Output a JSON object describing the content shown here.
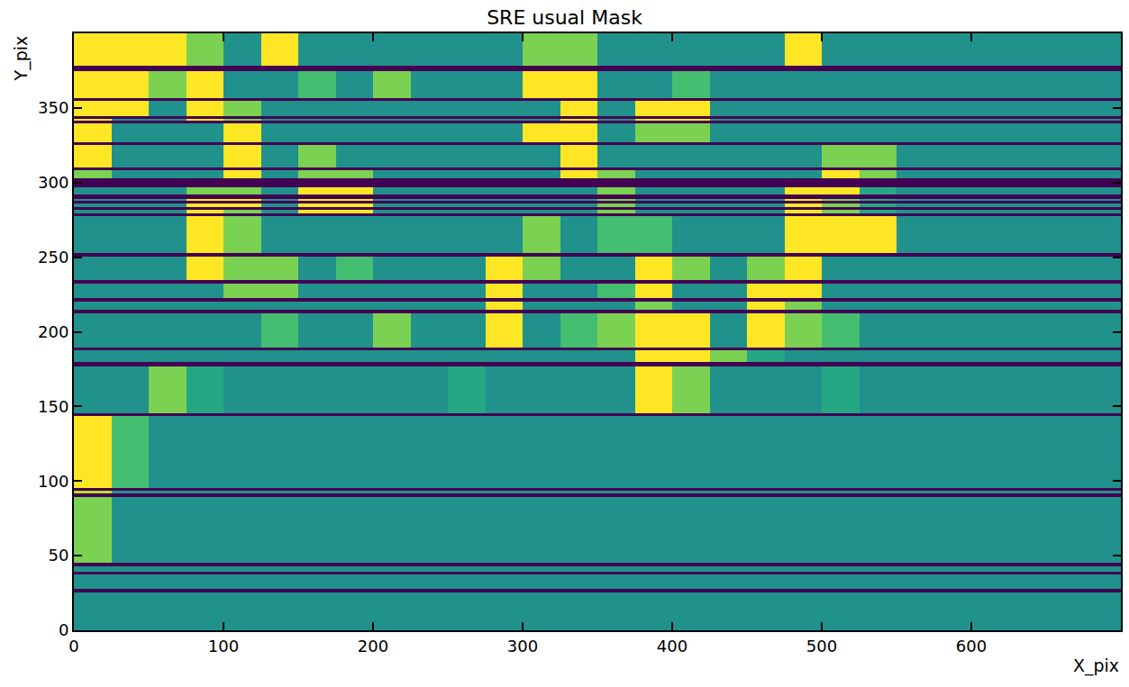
{
  "chart_data": {
    "type": "heatmap",
    "title": "SRE usual Mask",
    "x_label": "X_pix",
    "y_label": "Y_pix",
    "color": "Viridis",
    "xlim": [
      0,
      700
    ],
    "ylim": [
      0,
      400
    ],
    "xticks": [
      0,
      100,
      200,
      300,
      400,
      500,
      600
    ],
    "yticks": [
      0,
      50,
      100,
      150,
      200,
      250,
      300,
      350
    ],
    "grid": false,
    "zlim": [
      0,
      1
    ],
    "x": [
      0,
      25,
      50,
      75,
      100,
      125,
      150,
      175,
      200,
      225,
      250,
      275,
      300,
      325,
      350,
      375,
      400,
      425,
      450,
      475,
      500,
      525,
      550,
      575,
      600,
      625,
      650,
      675,
      700
    ],
    "y": [
      0,
      25.5,
      27.5,
      37.5,
      39.5,
      43,
      45,
      89.5,
      91.5,
      93.5,
      95.5,
      143.5,
      145.5,
      177,
      180,
      187.5,
      189.5,
      212.5,
      214.5,
      220.5,
      222.5,
      232.5,
      234.5,
      250.5,
      252.5,
      277.5,
      279.5,
      281.5,
      283.5,
      286,
      288,
      289,
      292,
      297,
      303,
      308,
      310,
      325,
      327,
      339.5,
      341.5,
      342.5,
      344.5,
      354.5,
      356.5,
      374.5,
      378.5,
      400
    ],
    "z": [
      [
        0.5,
        0.5,
        0.5,
        0.5,
        0.5,
        0.5,
        0.5,
        0.5,
        0.5,
        0.5,
        0.5,
        0.5,
        0.5,
        0.5,
        0.5,
        0.5,
        0.5,
        0.5,
        0.5,
        0.5,
        0.5,
        0.5,
        0.5,
        0.5,
        0.5,
        0.5,
        0.5,
        0.5
      ],
      [
        0,
        0,
        0,
        0,
        0,
        0,
        0,
        0,
        0,
        0,
        0,
        0,
        0,
        0,
        0,
        0,
        0,
        0,
        0,
        0,
        0,
        0,
        0,
        0,
        0,
        0,
        0,
        0
      ],
      [
        0.5,
        0.5,
        0.5,
        0.5,
        0.5,
        0.5,
        0.5,
        0.5,
        0.5,
        0.5,
        0.5,
        0.5,
        0.5,
        0.5,
        0.5,
        0.5,
        0.5,
        0.5,
        0.5,
        0.5,
        0.5,
        0.5,
        0.5,
        0.5,
        0.5,
        0.5,
        0.5,
        0.5
      ],
      [
        0,
        0,
        0,
        0,
        0,
        0,
        0,
        0,
        0,
        0,
        0,
        0,
        0,
        0,
        0,
        0,
        0,
        0,
        0,
        0,
        0,
        0,
        0,
        0,
        0,
        0,
        0,
        0
      ],
      [
        0.5,
        0.5,
        0.5,
        0.5,
        0.5,
        0.5,
        0.5,
        0.5,
        0.5,
        0.5,
        0.5,
        0.5,
        0.5,
        0.5,
        0.5,
        0.5,
        0.5,
        0.5,
        0.5,
        0.5,
        0.5,
        0.5,
        0.5,
        0.5,
        0.5,
        0.5,
        0.5,
        0.5
      ],
      [
        0,
        0,
        0,
        0,
        0,
        0,
        0,
        0,
        0,
        0,
        0,
        0,
        0,
        0,
        0,
        0,
        0,
        0,
        0,
        0,
        0,
        0,
        0,
        0,
        0,
        0,
        0,
        0
      ],
      [
        0.8,
        0.5,
        0.5,
        0.5,
        0.5,
        0.5,
        0.5,
        0.5,
        0.5,
        0.5,
        0.5,
        0.5,
        0.5,
        0.5,
        0.5,
        0.5,
        0.5,
        0.5,
        0.5,
        0.5,
        0.5,
        0.5,
        0.5,
        0.5,
        0.5,
        0.5,
        0.5,
        0.5
      ],
      [
        0,
        0,
        0,
        0,
        0,
        0,
        0,
        0,
        0,
        0,
        0,
        0,
        0,
        0,
        0,
        0,
        0,
        0,
        0,
        0,
        0,
        0,
        0,
        0,
        0,
        0,
        0,
        0
      ],
      [
        0.9,
        0.5,
        0.5,
        0.5,
        0.5,
        0.5,
        0.5,
        0.5,
        0.5,
        0.5,
        0.5,
        0.5,
        0.5,
        0.5,
        0.5,
        0.5,
        0.5,
        0.5,
        0.5,
        0.5,
        0.5,
        0.5,
        0.5,
        0.5,
        0.5,
        0.5,
        0.5,
        0.5
      ],
      [
        0,
        0,
        0,
        0,
        0,
        0,
        0,
        0,
        0,
        0,
        0,
        0,
        0,
        0,
        0,
        0,
        0,
        0,
        0,
        0,
        0,
        0,
        0,
        0,
        0,
        0,
        0,
        0
      ],
      [
        1,
        0.7,
        0.5,
        0.5,
        0.5,
        0.5,
        0.5,
        0.5,
        0.5,
        0.5,
        0.5,
        0.5,
        0.5,
        0.5,
        0.5,
        0.5,
        0.5,
        0.5,
        0.5,
        0.5,
        0.5,
        0.5,
        0.5,
        0.5,
        0.5,
        0.5,
        0.5,
        0.5
      ],
      [
        0,
        0,
        0,
        0,
        0,
        0,
        0,
        0,
        0,
        0,
        0,
        0,
        0,
        0,
        0,
        0,
        0,
        0,
        0,
        0,
        0,
        0,
        0,
        0,
        0,
        0,
        0,
        0
      ],
      [
        0.5,
        0.5,
        0.8,
        0.6,
        0.5,
        0.5,
        0.5,
        0.5,
        0.5,
        0.5,
        0.6,
        0.5,
        0.5,
        0.5,
        0.5,
        1,
        0.8,
        0.5,
        0.5,
        0.5,
        0.6,
        0.5,
        0.5,
        0.5,
        0.5,
        0.5,
        0.5,
        0.5
      ],
      [
        0,
        0,
        0,
        0,
        0,
        0,
        0,
        0,
        0,
        0,
        0,
        0,
        0,
        0,
        0,
        0,
        0,
        0,
        0,
        0,
        0,
        0,
        0,
        0,
        0,
        0,
        0,
        0
      ],
      [
        0.5,
        0.5,
        0.5,
        0.5,
        0.5,
        0.5,
        0.5,
        0.5,
        0.5,
        0.5,
        0.5,
        0.5,
        0.5,
        0.5,
        0.5,
        1,
        1,
        0.8,
        0.6,
        0.5,
        0.5,
        0.5,
        0.5,
        0.5,
        0.5,
        0.5,
        0.5,
        0.5
      ],
      [
        0,
        0,
        0,
        0,
        0,
        0,
        0,
        0,
        0,
        0,
        0,
        0,
        0,
        0,
        0,
        0,
        0,
        0,
        0,
        0,
        0,
        0,
        0,
        0,
        0,
        0,
        0,
        0
      ],
      [
        0.5,
        0.5,
        0.5,
        0.5,
        0.5,
        0.7,
        0.5,
        0.5,
        0.8,
        0.5,
        0.5,
        1,
        0.5,
        0.7,
        0.8,
        1,
        1,
        0.5,
        1,
        0.8,
        0.7,
        0.5,
        0.5,
        0.5,
        0.5,
        0.5,
        0.5,
        0.5
      ],
      [
        0,
        0,
        0,
        0,
        0,
        0,
        0,
        0,
        0,
        0,
        0,
        0,
        0,
        0,
        0,
        0,
        0,
        0,
        0,
        0,
        0,
        0,
        0,
        0,
        0,
        0,
        0,
        0
      ],
      [
        0.5,
        0.5,
        0.5,
        0.5,
        0.5,
        0.5,
        0.5,
        0.5,
        0.5,
        0.5,
        0.5,
        1,
        0.5,
        0.5,
        0.5,
        0.8,
        0.5,
        0.5,
        1,
        0.8,
        0.5,
        0.5,
        0.5,
        0.5,
        0.5,
        0.5,
        0.5,
        0.5
      ],
      [
        0,
        0,
        0,
        0,
        0,
        0,
        0,
        0,
        0,
        0,
        0,
        0,
        0,
        0,
        0,
        0,
        0,
        0,
        0,
        0,
        0,
        0,
        0,
        0,
        0,
        0,
        0,
        0
      ],
      [
        0.5,
        0.5,
        0.5,
        0.5,
        0.8,
        0.8,
        0.5,
        0.5,
        0.5,
        0.5,
        0.5,
        1,
        0.5,
        0.5,
        0.7,
        1,
        0.5,
        0.5,
        1,
        1,
        0.5,
        0.5,
        0.5,
        0.5,
        0.5,
        0.5,
        0.5,
        0.5
      ],
      [
        0,
        0,
        0,
        0,
        0,
        0,
        0,
        0,
        0,
        0,
        0,
        0,
        0,
        0,
        0,
        0,
        0,
        0,
        0,
        0,
        0,
        0,
        0,
        0,
        0,
        0,
        0,
        0
      ],
      [
        0.5,
        0.5,
        0.5,
        1,
        0.8,
        0.8,
        0.5,
        0.7,
        0.5,
        0.5,
        0.5,
        1,
        0.8,
        0.5,
        0.5,
        1,
        0.8,
        0.5,
        0.8,
        1,
        0.5,
        0.5,
        0.5,
        0.5,
        0.5,
        0.5,
        0.5,
        0.5
      ],
      [
        0,
        0,
        0,
        0,
        0,
        0,
        0,
        0,
        0,
        0,
        0,
        0,
        0,
        0,
        0,
        0,
        0,
        0,
        0,
        0,
        0,
        0,
        0,
        0,
        0,
        0,
        0,
        0
      ],
      [
        0.5,
        0.5,
        0.5,
        1,
        0.8,
        0.5,
        0.5,
        0.5,
        0.5,
        0.5,
        0.5,
        0.5,
        0.8,
        0.5,
        0.7,
        0.7,
        0.5,
        0.5,
        0.5,
        1,
        1,
        1,
        0.5,
        0.5,
        0.5,
        0.5,
        0.5,
        0.5
      ],
      [
        0,
        0,
        0,
        0,
        0,
        0,
        0,
        0,
        0,
        0,
        0,
        0,
        0,
        0,
        0,
        0,
        0,
        0,
        0,
        0,
        0,
        0,
        0,
        0,
        0,
        0,
        0,
        0
      ],
      [
        0.5,
        0.5,
        0.5,
        1,
        0.8,
        0.5,
        1,
        1,
        0.5,
        0.5,
        0.5,
        0.5,
        0.5,
        0.5,
        0.8,
        0.5,
        0.5,
        0.5,
        0.5,
        1,
        0.8,
        0.6,
        0.5,
        0.5,
        0.5,
        0.5,
        0.5,
        0.5
      ],
      [
        0,
        0,
        0,
        0,
        0,
        0,
        0,
        0,
        0,
        0,
        0,
        0,
        0,
        0,
        0,
        0,
        0,
        0,
        0,
        0,
        0,
        0,
        0,
        0,
        0,
        0,
        0,
        0
      ],
      [
        0.5,
        0.5,
        0.5,
        1,
        1,
        0.5,
        1,
        1,
        0.5,
        0.5,
        0.5,
        0.5,
        0.5,
        0.5,
        0.8,
        0.5,
        0.5,
        0.5,
        0.5,
        1,
        0.8,
        0.6,
        0.5,
        0.5,
        0.5,
        0.5,
        0.5,
        0.5
      ],
      [
        0,
        0,
        0,
        0,
        0,
        0,
        0,
        0,
        0,
        0,
        0,
        0,
        0,
        0,
        0,
        0,
        0,
        0,
        0,
        0,
        0,
        0,
        0,
        0,
        0,
        0,
        0,
        0
      ],
      [
        0.5,
        0.5,
        0.5,
        1,
        1,
        0.5,
        1,
        1,
        0.5,
        0.5,
        0.5,
        0.5,
        0.5,
        0.5,
        0.8,
        0.5,
        0.5,
        0.5,
        0.5,
        1,
        0.8,
        0.6,
        0.5,
        0.5,
        0.5,
        0.5,
        0.5,
        0.5
      ],
      [
        0,
        0,
        0,
        0,
        0,
        0,
        0,
        0,
        0,
        0,
        0,
        0,
        0,
        0,
        0,
        0,
        0,
        0,
        0,
        0,
        0,
        0,
        0,
        0,
        0,
        0,
        0,
        0
      ],
      [
        0.5,
        0.5,
        0.5,
        0.8,
        0.8,
        0.5,
        1,
        1,
        0.5,
        0.5,
        0.5,
        0.5,
        0.5,
        0.5,
        0.8,
        0.5,
        0.5,
        0.5,
        0.5,
        1,
        1,
        0.6,
        0.5,
        0.5,
        0.5,
        0.5,
        0.5,
        0.5
      ],
      [
        0,
        0,
        0,
        0,
        0,
        0,
        0,
        0,
        0,
        0,
        0,
        0,
        0,
        0,
        0,
        0,
        0,
        0,
        0,
        0,
        0,
        0,
        0,
        0,
        0,
        0,
        0,
        0
      ],
      [
        0.8,
        0.5,
        0.5,
        0.5,
        1,
        0.5,
        0.8,
        0.8,
        0.5,
        0.5,
        0.5,
        0.5,
        0.5,
        1,
        0.8,
        0.5,
        0.5,
        0.5,
        0.5,
        0.5,
        1,
        0.8,
        0.5,
        0.5,
        0.5,
        0.5,
        0.5,
        0.5
      ],
      [
        0,
        0,
        0,
        0,
        0,
        0,
        0,
        0,
        0,
        0,
        0,
        0,
        0,
        0,
        0,
        0,
        0,
        0,
        0,
        0,
        0,
        0,
        0,
        0,
        0,
        0,
        0,
        0
      ],
      [
        1,
        0.5,
        0.5,
        0.5,
        1,
        0.5,
        0.8,
        0.5,
        0.5,
        0.5,
        0.5,
        0.5,
        0.5,
        1,
        0.5,
        0.5,
        0.5,
        0.5,
        0.5,
        0.5,
        0.8,
        0.8,
        0.5,
        0.5,
        0.5,
        0.5,
        0.5,
        0.5
      ],
      [
        0,
        0,
        0,
        0,
        0,
        0,
        0,
        0,
        0,
        0,
        0,
        0,
        0,
        0,
        0,
        0,
        0,
        0,
        0,
        0,
        0,
        0,
        0,
        0,
        0,
        0,
        0,
        0
      ],
      [
        1,
        0.5,
        0.5,
        0.5,
        1,
        0.5,
        0.5,
        0.5,
        0.5,
        0.5,
        0.5,
        0.5,
        1,
        1,
        0.5,
        0.8,
        0.8,
        0.5,
        0.5,
        0.5,
        0.5,
        0.5,
        0.5,
        0.5,
        0.5,
        0.5,
        0.5,
        0.5
      ],
      [
        0,
        0,
        0,
        0,
        0,
        0,
        0,
        0,
        0,
        0,
        0,
        0,
        0,
        0,
        0,
        0,
        0,
        0,
        0,
        0,
        0,
        0,
        0,
        0,
        0,
        0,
        0,
        0
      ],
      [
        1,
        0.5,
        0.5,
        1,
        0.8,
        0.5,
        0.5,
        0.5,
        0.5,
        0.5,
        0.5,
        0.5,
        0.5,
        1,
        0.5,
        1,
        1,
        0.5,
        0.5,
        0.5,
        0.5,
        0.5,
        0.5,
        0.5,
        0.5,
        0.5,
        0.5,
        0.5
      ],
      [
        0,
        0,
        0,
        0,
        0,
        0,
        0,
        0,
        0,
        0,
        0,
        0,
        0,
        0,
        0,
        0,
        0,
        0,
        0,
        0,
        0,
        0,
        0,
        0,
        0,
        0,
        0,
        0
      ],
      [
        1,
        1,
        0.5,
        1,
        0.8,
        0.5,
        0.5,
        0.5,
        0.5,
        0.5,
        0.5,
        0.5,
        0.5,
        1,
        0.5,
        1,
        1,
        0.5,
        0.5,
        0.5,
        0.5,
        0.5,
        0.5,
        0.5,
        0.5,
        0.5,
        0.5,
        0.5
      ],
      [
        0,
        0,
        0,
        0,
        0,
        0,
        0,
        0,
        0,
        0,
        0,
        0,
        0,
        0,
        0,
        0,
        0,
        0,
        0,
        0,
        0,
        0,
        0,
        0,
        0,
        0,
        0,
        0
      ],
      [
        1,
        1,
        0.8,
        1,
        0.5,
        0.5,
        0.7,
        0.5,
        0.8,
        0.5,
        0.5,
        0.5,
        1,
        1,
        0.5,
        0.5,
        0.7,
        0.5,
        0.5,
        0.5,
        0.5,
        0.5,
        0.5,
        0.5,
        0.5,
        0.5,
        0.5,
        0.5
      ],
      [
        0,
        0,
        0,
        0,
        0,
        0,
        0,
        0,
        0,
        0,
        0,
        0,
        0,
        0,
        0,
        0,
        0,
        0,
        0,
        0,
        0,
        0,
        0,
        0,
        0,
        0,
        0,
        0
      ],
      [
        1,
        1,
        1,
        0.8,
        0.5,
        1,
        0.5,
        0.5,
        0.5,
        0.5,
        0.5,
        0.5,
        0.8,
        0.8,
        0.5,
        0.5,
        0.5,
        0.5,
        0.5,
        1,
        0.5,
        0.5,
        0.5,
        0.5,
        0.5,
        0.5,
        0.5,
        0.5
      ]
    ]
  }
}
